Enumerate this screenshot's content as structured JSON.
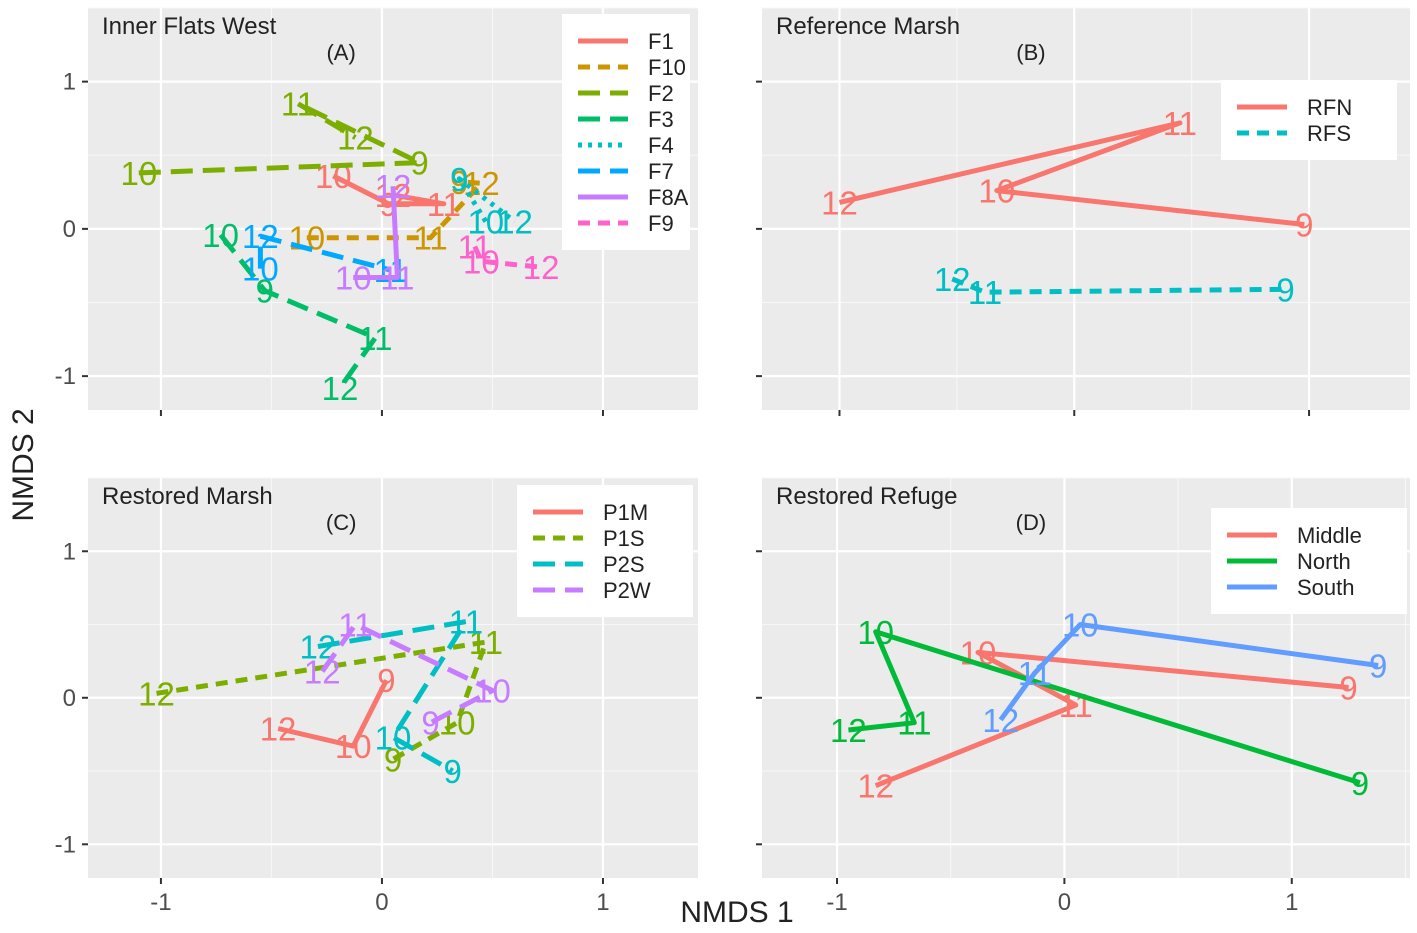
{
  "chart_data": {
    "type": "line",
    "xlabel": "NMDS 1",
    "ylabel": "NMDS 2",
    "xticks": [
      -1,
      0,
      1
    ],
    "yticks": [
      -1,
      0,
      1
    ],
    "panels": [
      {
        "id": "A",
        "title": "Inner Flats West",
        "tag": "(A)",
        "xlim": [
          -1.33,
          1.43
        ],
        "ylim": [
          -1.23,
          1.5
        ],
        "series": [
          {
            "name": "F1",
            "color": "#F8766D",
            "dash": "solid",
            "points": [
              {
                "label": "10",
                "x": -0.22,
                "y": 0.36
              },
              {
                "label": "9",
                "x": 0.03,
                "y": 0.17
              },
              {
                "label": "11",
                "x": 0.28,
                "y": 0.17
              },
              {
                "label": "12",
                "x": 0.05,
                "y": 0.23
              }
            ]
          },
          {
            "name": "F10",
            "color": "#CD9600",
            "dash": "dash",
            "points": [
              {
                "label": "10",
                "x": -0.34,
                "y": -0.06
              },
              {
                "label": "11",
                "x": 0.22,
                "y": -0.06
              },
              {
                "label": "12",
                "x": 0.45,
                "y": 0.31
              },
              {
                "label": "9",
                "x": 0.35,
                "y": 0.32
              }
            ]
          },
          {
            "name": "F2",
            "color": "#7CAE00",
            "dash": "longdash",
            "points": [
              {
                "label": "10",
                "x": -1.1,
                "y": 0.38
              },
              {
                "label": "9",
                "x": 0.17,
                "y": 0.45
              },
              {
                "label": "11",
                "x": -0.38,
                "y": 0.85
              },
              {
                "label": "12",
                "x": -0.12,
                "y": 0.62
              }
            ]
          },
          {
            "name": "F3",
            "color": "#00BE67",
            "dash": "longdash",
            "points": [
              {
                "label": "10",
                "x": -0.73,
                "y": -0.04
              },
              {
                "label": "9",
                "x": -0.53,
                "y": -0.42
              },
              {
                "label": "11",
                "x": -0.03,
                "y": -0.74
              },
              {
                "label": "12",
                "x": -0.19,
                "y": -1.08
              }
            ]
          },
          {
            "name": "F4",
            "color": "#00BFC4",
            "dash": "dotted",
            "points": [
              {
                "label": "10",
                "x": 0.47,
                "y": 0.05
              },
              {
                "label": "9",
                "x": 0.35,
                "y": 0.34
              },
              {
                "label": "12",
                "x": 0.6,
                "y": 0.05
              }
            ]
          },
          {
            "name": "F7",
            "color": "#00A9FF",
            "dash": "longdash",
            "points": [
              {
                "label": "10",
                "x": -0.55,
                "y": -0.27
              },
              {
                "label": "12",
                "x": -0.55,
                "y": -0.05
              },
              {
                "label": "11",
                "x": 0.04,
                "y": -0.28
              }
            ]
          },
          {
            "name": "F8A",
            "color": "#C77CFF",
            "dash": "solid",
            "points": [
              {
                "label": "10",
                "x": -0.13,
                "y": -0.33
              },
              {
                "label": "11",
                "x": 0.07,
                "y": -0.33
              },
              {
                "label": "12",
                "x": 0.05,
                "y": 0.29
              }
            ]
          },
          {
            "name": "F9",
            "color": "#FF61CC",
            "dash": "dash",
            "points": [
              {
                "label": "11",
                "x": 0.42,
                "y": -0.12
              },
              {
                "label": "10",
                "x": 0.45,
                "y": -0.22
              },
              {
                "label": "12",
                "x": 0.72,
                "y": -0.26
              }
            ]
          }
        ],
        "legend": {
          "position": "top-right"
        }
      },
      {
        "id": "B",
        "title": "Reference Marsh",
        "tag": "(B)",
        "xlim": [
          -1.33,
          1.43
        ],
        "ylim": [
          -1.23,
          1.5
        ],
        "series": [
          {
            "name": "RFN",
            "color": "#F8766D",
            "dash": "solid",
            "points": [
              {
                "label": "12",
                "x": -1.0,
                "y": 0.18
              },
              {
                "label": "11",
                "x": 0.45,
                "y": 0.72
              },
              {
                "label": "10",
                "x": -0.33,
                "y": 0.26
              },
              {
                "label": "9",
                "x": 0.98,
                "y": 0.03
              }
            ]
          },
          {
            "name": "RFS",
            "color": "#00BFC4",
            "dash": "dash",
            "points": [
              {
                "label": "12",
                "x": -0.52,
                "y": -0.34
              },
              {
                "label": "11",
                "x": -0.38,
                "y": -0.43
              },
              {
                "label": "9",
                "x": 0.9,
                "y": -0.41
              }
            ]
          }
        ],
        "legend": {
          "position": "top-right"
        }
      },
      {
        "id": "C",
        "title": "Restored Marsh",
        "tag": "(C)",
        "xlim": [
          -1.33,
          1.43
        ],
        "ylim": [
          -1.23,
          1.5
        ],
        "series": [
          {
            "name": "P1M",
            "color": "#F8766D",
            "dash": "solid",
            "points": [
              {
                "label": "12",
                "x": -0.47,
                "y": -0.21
              },
              {
                "label": "10",
                "x": -0.13,
                "y": -0.33
              },
              {
                "label": "9",
                "x": 0.02,
                "y": 0.12
              }
            ]
          },
          {
            "name": "P1S",
            "color": "#7CAE00",
            "dash": "dash",
            "points": [
              {
                "label": "12",
                "x": -1.02,
                "y": 0.03
              },
              {
                "label": "11",
                "x": 0.47,
                "y": 0.38
              },
              {
                "label": "10",
                "x": 0.34,
                "y": -0.17
              },
              {
                "label": "9",
                "x": 0.05,
                "y": -0.42
              }
            ]
          },
          {
            "name": "P2S",
            "color": "#00BFC4",
            "dash": "longdash",
            "points": [
              {
                "label": "12",
                "x": -0.29,
                "y": 0.35
              },
              {
                "label": "11",
                "x": 0.38,
                "y": 0.52
              },
              {
                "label": "10",
                "x": 0.05,
                "y": -0.27
              },
              {
                "label": "9",
                "x": 0.32,
                "y": -0.5
              }
            ]
          },
          {
            "name": "P2W",
            "color": "#C77CFF",
            "dash": "longdash",
            "points": [
              {
                "label": "12",
                "x": -0.27,
                "y": 0.18
              },
              {
                "label": "11",
                "x": -0.12,
                "y": 0.5
              },
              {
                "label": "10",
                "x": 0.5,
                "y": 0.05
              },
              {
                "label": "9",
                "x": 0.22,
                "y": -0.17
              }
            ]
          }
        ],
        "legend": {
          "position": "top-right"
        }
      },
      {
        "id": "D",
        "title": "Restored Refuge",
        "tag": "(D)",
        "xlim": [
          -1.33,
          1.52
        ],
        "ylim": [
          -1.23,
          1.5
        ],
        "series": [
          {
            "name": "Middle",
            "color": "#F8766D",
            "dash": "solid",
            "points": [
              {
                "label": "12",
                "x": -0.83,
                "y": -0.6
              },
              {
                "label": "11",
                "x": 0.05,
                "y": -0.05
              },
              {
                "label": "10",
                "x": -0.38,
                "y": 0.31
              },
              {
                "label": "9",
                "x": 1.25,
                "y": 0.07
              }
            ]
          },
          {
            "name": "North",
            "color": "#00BA38",
            "dash": "solid",
            "points": [
              {
                "label": "12",
                "x": -0.95,
                "y": -0.22
              },
              {
                "label": "11",
                "x": -0.66,
                "y": -0.17
              },
              {
                "label": "10",
                "x": -0.83,
                "y": 0.45
              },
              {
                "label": "9",
                "x": 1.3,
                "y": -0.58
              }
            ]
          },
          {
            "name": "South",
            "color": "#619CFF",
            "dash": "solid",
            "points": [
              {
                "label": "12",
                "x": -0.28,
                "y": -0.15
              },
              {
                "label": "11",
                "x": -0.13,
                "y": 0.17
              },
              {
                "label": "10",
                "x": 0.07,
                "y": 0.5
              },
              {
                "label": "9",
                "x": 1.38,
                "y": 0.22
              }
            ]
          }
        ],
        "legend": {
          "position": "top-right"
        }
      }
    ]
  }
}
